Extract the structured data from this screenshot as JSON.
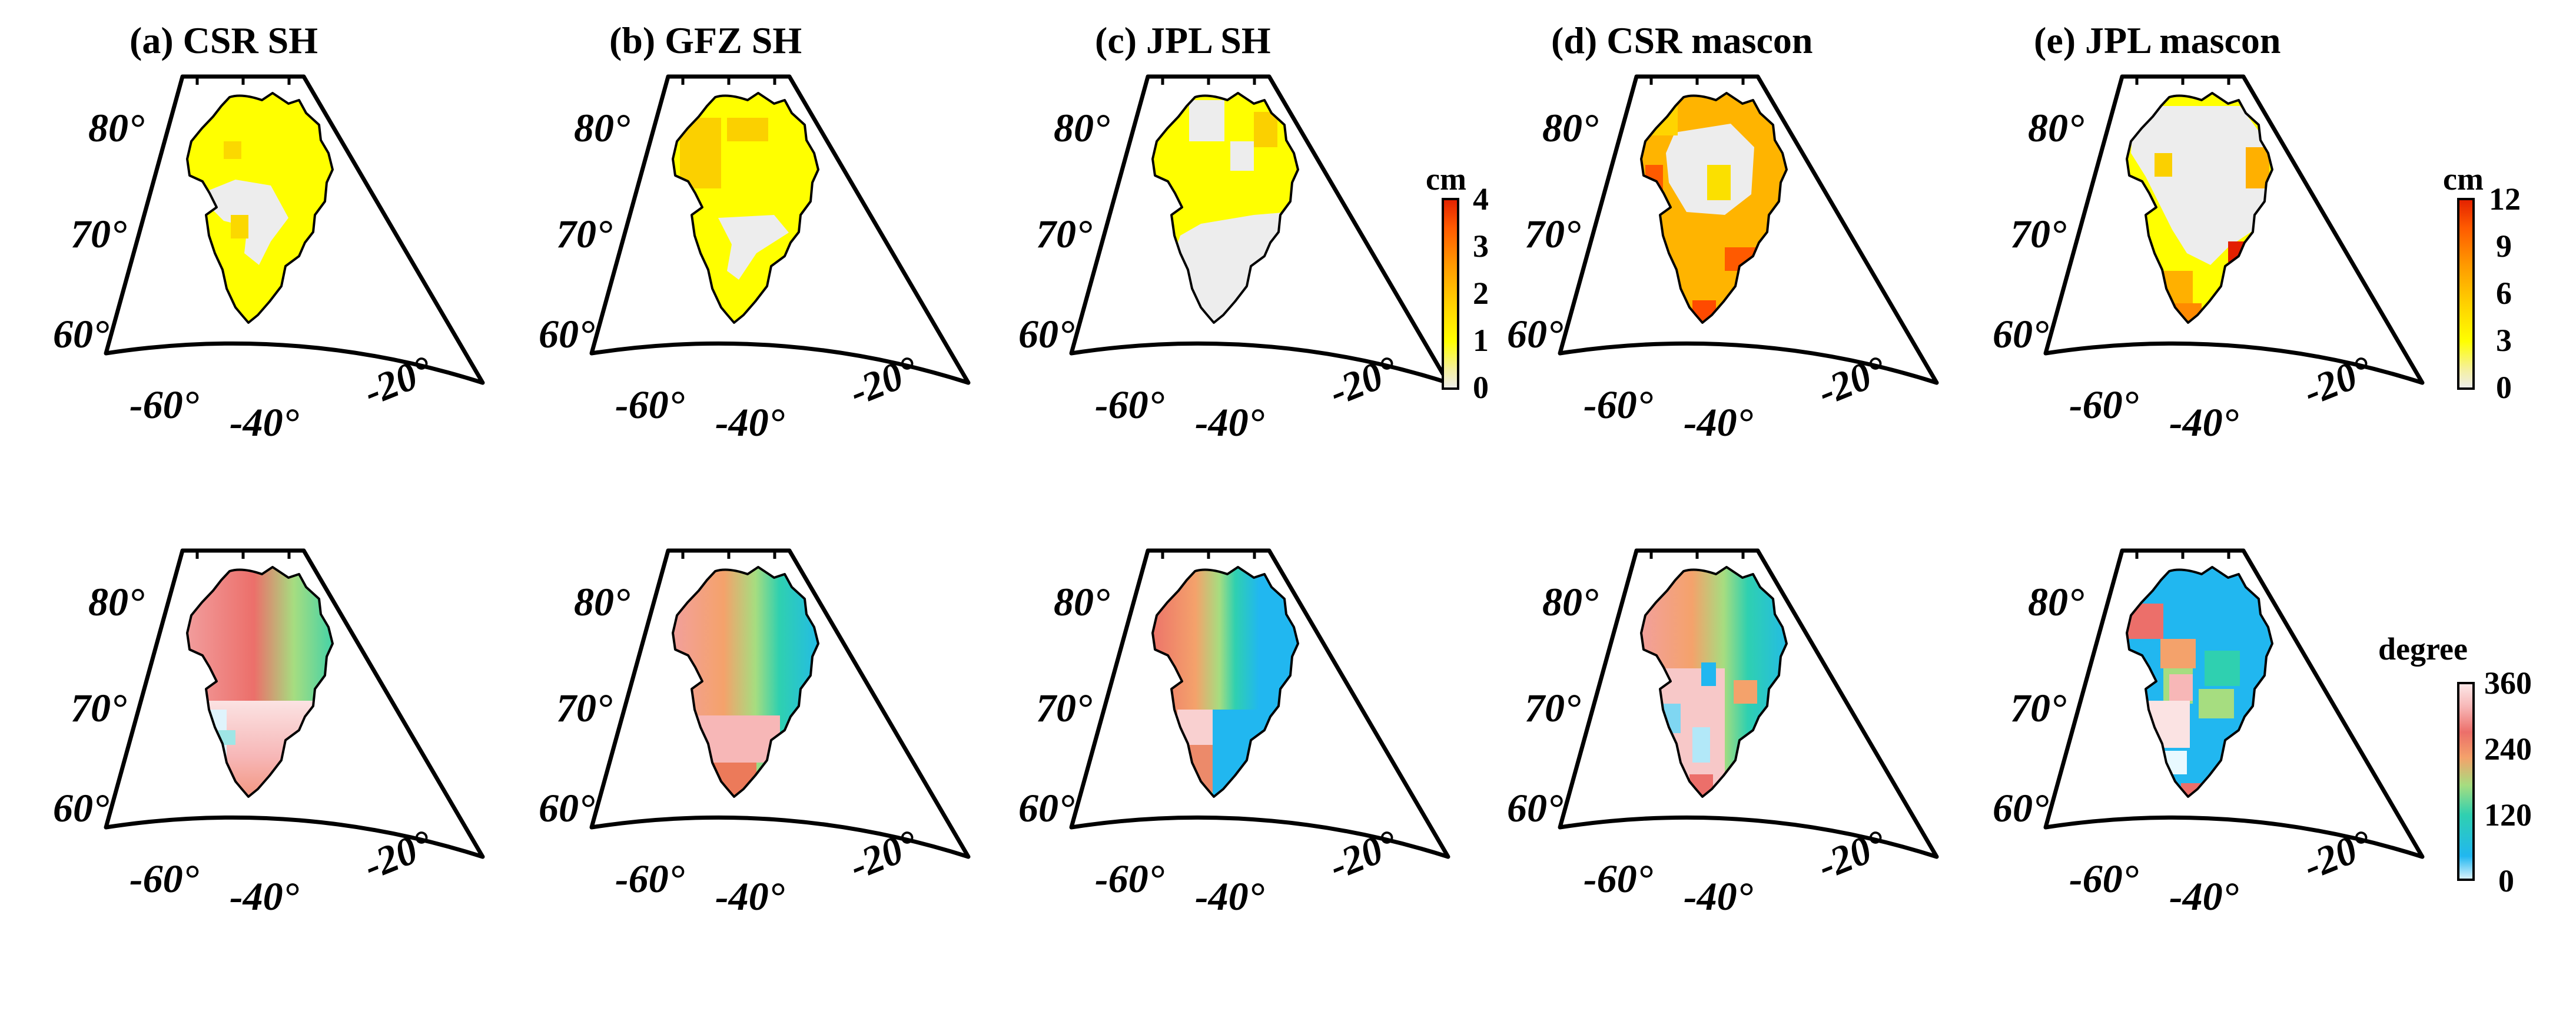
{
  "figure": {
    "columns": [
      {
        "id": "a",
        "title": "(a) CSR SH"
      },
      {
        "id": "b",
        "title": "(b) GFZ SH"
      },
      {
        "id": "c",
        "title": "(c) JPL SH"
      },
      {
        "id": "d",
        "title": "(d) CSR mascon"
      },
      {
        "id": "e",
        "title": "(e) JPL mascon"
      }
    ],
    "rows": [
      {
        "id": "amplitude",
        "variable": "amplitude"
      },
      {
        "id": "phase",
        "variable": "phase"
      }
    ],
    "lat_labels": [
      "80°",
      "70°",
      "60°"
    ],
    "lon_labels": [
      "-60°",
      "-40°",
      "-20°"
    ]
  },
  "colorbars": {
    "amp_sh": {
      "unit": "cm",
      "ticks": [
        "4",
        "3",
        "2",
        "1",
        "0"
      ],
      "min": 0,
      "max": 4,
      "colors": [
        "#ededed",
        "#ffff00",
        "#ffd000",
        "#ff9a00",
        "#ff5a00",
        "#e32000"
      ]
    },
    "amp_mascon": {
      "unit": "cm",
      "ticks": [
        "12",
        "9",
        "6",
        "3",
        "0"
      ],
      "min": 0,
      "max": 12,
      "colors": [
        "#ededed",
        "#ffff00",
        "#ffd000",
        "#ff9a00",
        "#ff5a00",
        "#e32000"
      ]
    },
    "phase": {
      "unit": "degree",
      "ticks": [
        "360",
        "240",
        "120",
        "0"
      ],
      "min": 0,
      "max": 360,
      "colors": [
        "#ffe8e8",
        "#21b7f0",
        "#2fd0b0",
        "#a6dd80",
        "#f4a26b",
        "#ec6f6a",
        "#f7b7b7",
        "#fdeaea"
      ]
    }
  },
  "palette": {
    "no_signal": "#ededed",
    "yellow": "#ffff00",
    "orange": "#ff9a00",
    "red": "#e32000",
    "phase_red": "#ec6f6a",
    "phase_pink": "#fdeaea",
    "phase_blue": "#21b7f0",
    "phase_green": "#2fd0b0"
  }
}
